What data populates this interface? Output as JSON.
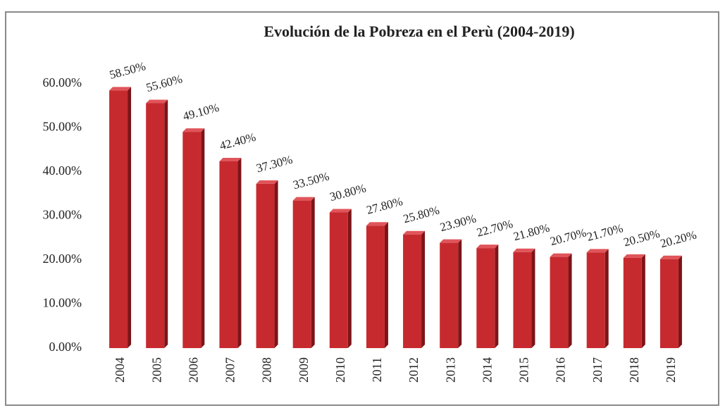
{
  "chart_data": {
    "type": "bar",
    "title": "Evolución de la Pobreza en el Perù (2004-2019)",
    "categories": [
      "2004",
      "2005",
      "2006",
      "2007",
      "2008",
      "2009",
      "2010",
      "2011",
      "2012",
      "2013",
      "2014",
      "2015",
      "2016",
      "2017",
      "2018",
      "2019"
    ],
    "values": [
      58.5,
      55.6,
      49.1,
      42.4,
      37.3,
      33.5,
      30.8,
      27.8,
      25.8,
      23.9,
      22.7,
      21.8,
      20.7,
      21.7,
      20.5,
      20.2
    ],
    "value_labels": [
      "58.50%",
      "55.60%",
      "49.10%",
      "42.40%",
      "37.30%",
      "33.50%",
      "30.80%",
      "27.80%",
      "25.80%",
      "23.90%",
      "22.70%",
      "21.80%",
      "20.70%",
      "21.70%",
      "20.50%",
      "20.20%"
    ],
    "color": "#c62a2f",
    "ylim": [
      0,
      60
    ],
    "yticks": [
      {
        "value": 0,
        "label": "0.00%"
      },
      {
        "value": 10,
        "label": "10.00%"
      },
      {
        "value": 20,
        "label": "20.00%"
      },
      {
        "value": 30,
        "label": "30.00%"
      },
      {
        "value": 40,
        "label": "40.00%"
      },
      {
        "value": 50,
        "label": "50.00%"
      },
      {
        "value": 60,
        "label": "60.00%"
      }
    ],
    "grid": false
  }
}
